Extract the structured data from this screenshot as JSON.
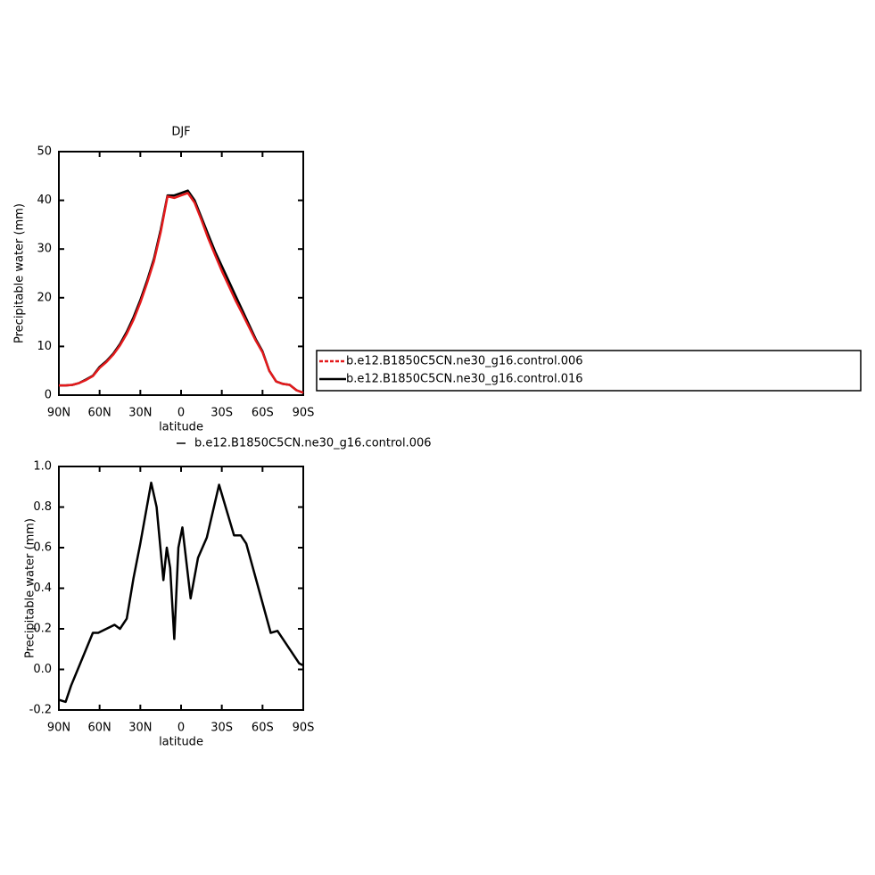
{
  "chart_data": [
    {
      "type": "line",
      "title": "DJF",
      "xlabel": "latitude",
      "ylabel": "Precipitable water (mm)",
      "x": [
        90,
        85,
        80,
        75,
        70,
        65,
        60,
        55,
        50,
        45,
        40,
        35,
        30,
        25,
        20,
        15,
        10,
        5,
        0,
        -5,
        -10,
        -15,
        -20,
        -25,
        -30,
        -35,
        -40,
        -45,
        -50,
        -55,
        -60,
        -65,
        -70,
        -75,
        -80,
        -85,
        -90
      ],
      "series": [
        {
          "name": "b.e12.B1850C5CN.ne30_g16.control.006",
          "color": "#e41a1c",
          "values": [
            2,
            2,
            2.1,
            2.5,
            3.1,
            3.9,
            5.6,
            6.8,
            8.3,
            10.2,
            12.6,
            15.5,
            19,
            23,
            27.5,
            33.5,
            40.8,
            40.5,
            41,
            41.5,
            39.5,
            36,
            32.2,
            28.8,
            25.5,
            22.5,
            19.5,
            16.8,
            14,
            11.2,
            8.8,
            5,
            2.8,
            2.3,
            2.1,
            1,
            0.5
          ]
        },
        {
          "name": "b.e12.B1850C5CN.ne30_g16.control.016",
          "color": "#000000",
          "values": [
            2,
            2,
            2.1,
            2.5,
            3.2,
            4,
            5.8,
            7,
            8.5,
            10.5,
            13,
            16,
            19.5,
            23.5,
            28,
            34,
            41,
            41,
            41.5,
            42,
            40,
            36.5,
            33,
            29.5,
            26.5,
            23.5,
            20.5,
            17.5,
            14.5,
            11.5,
            9,
            5,
            2.8,
            2.3,
            2.1,
            1,
            0.5
          ]
        }
      ],
      "xlim": [
        90,
        -90
      ],
      "xticks": [
        {
          "value": 90,
          "label": "90N"
        },
        {
          "value": 60,
          "label": "60N"
        },
        {
          "value": 30,
          "label": "30N"
        },
        0,
        {
          "value": -30,
          "label": "30S"
        },
        {
          "value": -60,
          "label": "60S"
        },
        {
          "value": -90,
          "label": "90S"
        }
      ],
      "ylim": [
        0,
        50
      ],
      "yticks": [
        0,
        10,
        20,
        30,
        40,
        50
      ],
      "legend": "right"
    },
    {
      "type": "line",
      "xlabel": "latitude",
      "ylabel": "Precipitable water (mm)",
      "x": [
        90,
        85,
        81,
        73,
        65,
        61,
        49,
        45,
        40,
        35,
        30,
        22,
        18,
        13,
        10.5,
        8,
        5,
        2,
        -1,
        -7,
        -12.5,
        -19,
        -28,
        -39,
        -44,
        -48,
        -57,
        -66,
        -71,
        -80,
        -87,
        -90
      ],
      "series": [
        {
          "name": "b.e12.B1850C5CN.ne30_g16.control.006",
          "color": "#000000",
          "values": [
            -0.15,
            -0.16,
            -0.08,
            0.05,
            0.18,
            0.18,
            0.22,
            0.2,
            0.25,
            0.45,
            0.62,
            0.92,
            0.8,
            0.44,
            0.6,
            0.5,
            0.15,
            0.6,
            0.7,
            0.35,
            0.55,
            0.65,
            0.91,
            0.66,
            0.66,
            0.62,
            0.4,
            0.18,
            0.19,
            0.1,
            0.03,
            0.02
          ]
        }
      ],
      "xlim": [
        90,
        -90
      ],
      "xticks": [
        {
          "value": 90,
          "label": "90N"
        },
        {
          "value": 60,
          "label": "60N"
        },
        {
          "value": 30,
          "label": "30N"
        },
        0,
        {
          "value": -30,
          "label": "30S"
        },
        {
          "value": -60,
          "label": "60S"
        },
        {
          "value": -90,
          "label": "90S"
        }
      ],
      "ylim": [
        -0.2,
        1
      ],
      "yticks": [
        {
          "value": -0.2,
          "label": "-0.2"
        },
        {
          "value": 0,
          "label": "0.0"
        },
        {
          "value": 0.2,
          "label": "0.2"
        },
        {
          "value": 0.4,
          "label": "0.4"
        },
        {
          "value": 0.6,
          "label": "0.6"
        },
        {
          "value": 0.8,
          "label": "0.8"
        },
        {
          "value": 1,
          "label": "1.0"
        }
      ],
      "legend": "top"
    }
  ]
}
